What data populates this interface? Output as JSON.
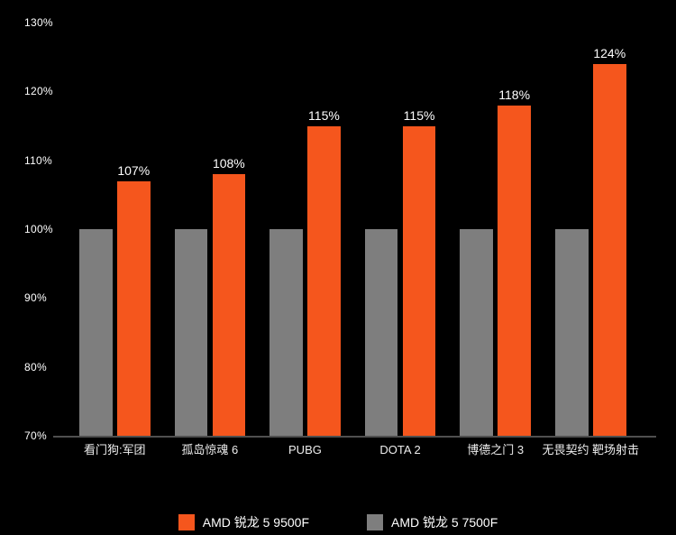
{
  "chart_data": {
    "type": "bar",
    "title": "",
    "categories": [
      "看门狗:军团",
      "孤岛惊魂 6",
      "PUBG",
      "DOTA 2",
      "博德之门 3",
      "无畏契约 靶场射击"
    ],
    "series": [
      {
        "name": "AMD 锐龙 5 9500F",
        "color": "#F5561D",
        "values": [
          107,
          108,
          115,
          115,
          118,
          124
        ],
        "value_labels": [
          "107%",
          "108%",
          "115%",
          "115%",
          "118%",
          "124%"
        ],
        "show_value_labels": true
      },
      {
        "name": "AMD 锐龙 5 7500F",
        "color": "#7E7E7E",
        "values": [
          100,
          100,
          100,
          100,
          100,
          100
        ],
        "value_labels": [
          "",
          "",
          "",
          "",
          "",
          ""
        ],
        "show_value_labels": false
      }
    ],
    "xlabel": "",
    "ylabel": "",
    "ylim": [
      70,
      130
    ],
    "ytick_step": 10,
    "ytick_labels": [
      "130%",
      "120%",
      "110%",
      "100%",
      "90%",
      "80%",
      "70%"
    ],
    "grid": false,
    "legend_position": "bottom-center",
    "legend": [
      {
        "label": "AMD 锐龙 5 9500F",
        "color": "#F5561D"
      },
      {
        "label": "AMD 锐龙 5 7500F",
        "color": "#7E7E7E"
      }
    ],
    "colors": {
      "background": "#000000",
      "tick_text": "#FFFFFF",
      "value_text": "#FFFFFF",
      "category_text": "#EDEDED",
      "axis_line": "#4F4F4F"
    }
  }
}
